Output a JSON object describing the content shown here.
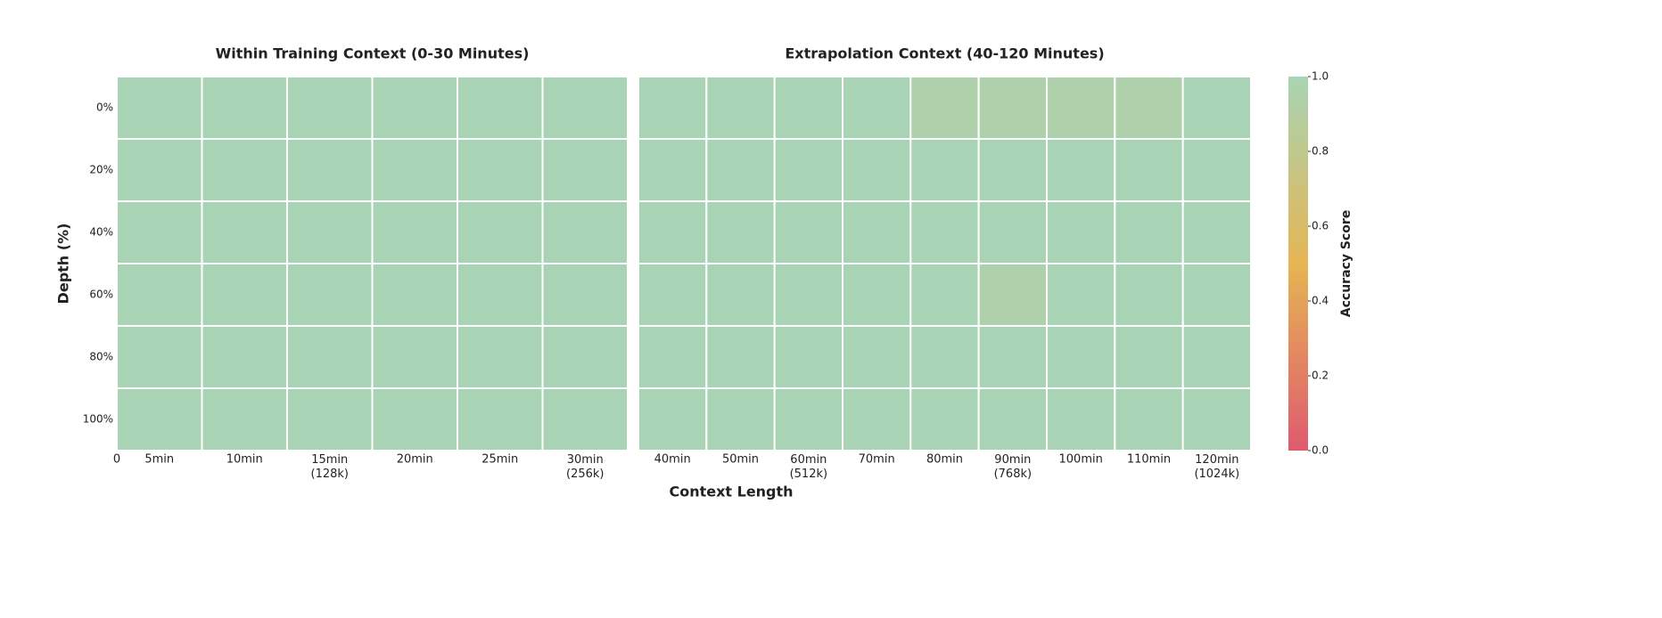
{
  "chart_data": {
    "type": "heatmap",
    "xlabel": "Context Length",
    "ylabel": "Depth (%)",
    "x_origin_label": "0",
    "colormap": [
      "#e05a6f",
      "#e5b553",
      "#a8d4b5"
    ],
    "colorbar": {
      "label": "Accuracy Score",
      "lim": [
        0,
        1
      ],
      "ticks": [
        {
          "value": 0,
          "label": "0.0"
        },
        0.2,
        0.4,
        0.6,
        0.8,
        {
          "value": 1,
          "label": "1.0"
        }
      ]
    },
    "panels": [
      {
        "title": "Within Training Context (0-30 Minutes)",
        "x_categories": [
          "5min",
          "10min",
          "15min\n(128k)",
          "20min",
          "25min",
          "30min\n(256k)"
        ],
        "y_categories": [
          "0%",
          "20%",
          "40%",
          "60%",
          "80%",
          "100%"
        ],
        "values": [
          [
            1,
            1,
            1,
            1,
            1,
            1
          ],
          [
            1,
            1,
            1,
            1,
            1,
            1
          ],
          [
            1,
            1,
            1,
            1,
            1,
            1
          ],
          [
            1,
            1,
            1,
            1,
            1,
            1
          ],
          [
            1,
            1,
            1,
            1,
            1,
            1
          ],
          [
            1,
            1,
            1,
            1,
            1,
            1
          ]
        ]
      },
      {
        "title": "Extrapolation Context (40-120 Minutes)",
        "x_categories": [
          "40min",
          "50min",
          "60min\n(512k)",
          "70min",
          "80min",
          "90min\n(768k)",
          "100min",
          "110min",
          "120min\n(1024k)"
        ],
        "values": [
          [
            1,
            1,
            1,
            1,
            0.95,
            0.95,
            0.95,
            0.95,
            1
          ],
          [
            1,
            1,
            1,
            1,
            1,
            1,
            1,
            1,
            1
          ],
          [
            1,
            1,
            1,
            1,
            1,
            1,
            1,
            1,
            1
          ],
          [
            1,
            1,
            1,
            1,
            1,
            0.95,
            1,
            1,
            1
          ],
          [
            1,
            1,
            1,
            1,
            1,
            1,
            1,
            1,
            1
          ],
          [
            1,
            1,
            1,
            1,
            1,
            1,
            1,
            1,
            1
          ]
        ]
      }
    ]
  }
}
